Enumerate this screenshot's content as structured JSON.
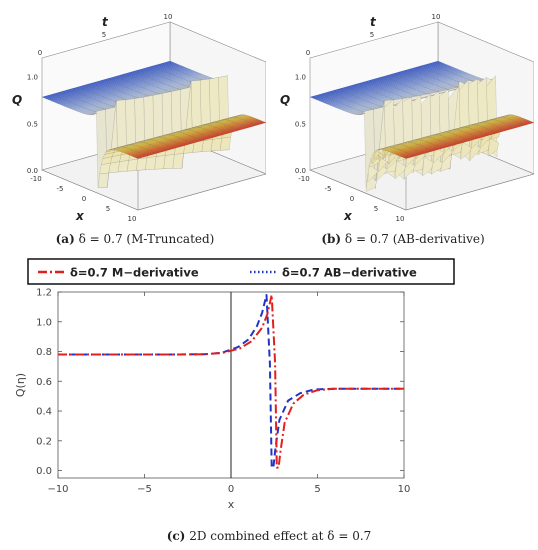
{
  "panels": [
    {
      "id": "a",
      "caption_label": "(a)",
      "caption_text": "δ = 0.7 (M-Truncated)",
      "chart_data": {
        "type": "surface3d",
        "axes": {
          "x": "x",
          "t": "t",
          "q": "Q"
        },
        "x_ticks": [
          "-10",
          "-5",
          "0",
          "5",
          "10"
        ],
        "t_ticks": [
          "0",
          "5",
          "10"
        ],
        "q_ticks": [
          "0.0",
          "0.5",
          "1.0"
        ],
        "xlim": [
          -10,
          10
        ],
        "tlim": [
          0,
          10
        ],
        "qlim": [
          0,
          1.2
        ],
        "left_level": 0.78,
        "right_level": 0.55,
        "colormap": [
          "#3a5fd9",
          "#b0c4ee",
          "#eeeacb",
          "#e8c63a",
          "#d9261c"
        ]
      }
    },
    {
      "id": "b",
      "caption_label": "(b)",
      "caption_text": "δ = 0.7 (AB-derivative)",
      "chart_data": {
        "type": "surface3d",
        "axes": {
          "x": "x",
          "t": "t",
          "q": "Q"
        },
        "x_ticks": [
          "-10",
          "-5",
          "0",
          "5",
          "10"
        ],
        "t_ticks": [
          "0",
          "5",
          "10"
        ],
        "q_ticks": [
          "0.0",
          "0.5",
          "1.0"
        ],
        "xlim": [
          -10,
          10
        ],
        "tlim": [
          0,
          10
        ],
        "qlim": [
          0,
          1.2
        ],
        "left_level": 0.78,
        "right_level": 0.55,
        "colormap": [
          "#3a5fd9",
          "#b0c4ee",
          "#eeeacb",
          "#e8c63a",
          "#d9261c"
        ]
      }
    }
  ],
  "chart_data": {
    "type": "line",
    "xlabel": "x",
    "ylabel": "Q(η)",
    "xlim": [
      -10,
      10
    ],
    "ylim": [
      -0.05,
      1.2
    ],
    "x_ticks": [
      -10,
      -5,
      0,
      5,
      10
    ],
    "y_ticks": [
      0.0,
      0.2,
      0.4,
      0.6,
      0.8,
      1.0,
      1.2
    ],
    "x_tick_labels": [
      "−10",
      "−5",
      "0",
      "5",
      "10"
    ],
    "y_tick_labels": [
      "0.0",
      "0.2",
      "0.4",
      "0.6",
      "0.8",
      "1.0",
      "1.2"
    ],
    "legend_position": "top",
    "vertical_line_x": 0,
    "series": [
      {
        "name": "δ=0.7 M−derivative",
        "color": "#e0201c",
        "dash": "dash-dot",
        "x": [
          -10,
          -6,
          -3,
          -1.5,
          -0.5,
          0.5,
          1.2,
          1.8,
          2.1,
          2.35,
          2.55,
          2.65,
          2.75,
          2.85,
          3.1,
          3.6,
          4.2,
          5.0,
          6.0,
          7.5,
          10
        ],
        "y": [
          0.78,
          0.78,
          0.78,
          0.782,
          0.79,
          0.82,
          0.87,
          0.96,
          1.05,
          1.18,
          0.72,
          0.02,
          0.02,
          0.12,
          0.32,
          0.45,
          0.51,
          0.54,
          0.55,
          0.55,
          0.55
        ]
      },
      {
        "name": "δ=0.7 AB−derivative",
        "color": "#2035c8",
        "dash": "dash",
        "x": [
          -10,
          -6,
          -3,
          -1.5,
          -0.5,
          0.4,
          1.0,
          1.5,
          1.8,
          2.05,
          2.25,
          2.35,
          2.45,
          2.55,
          2.8,
          3.3,
          4.0,
          4.8,
          6.0,
          7.5,
          10
        ],
        "y": [
          0.78,
          0.78,
          0.78,
          0.782,
          0.792,
          0.83,
          0.88,
          0.97,
          1.06,
          1.18,
          0.72,
          0.02,
          0.02,
          0.13,
          0.34,
          0.47,
          0.52,
          0.545,
          0.55,
          0.55,
          0.55
        ]
      }
    ]
  },
  "caption_c": {
    "label": "(c)",
    "text": "2D combined effect at δ = 0.7"
  }
}
